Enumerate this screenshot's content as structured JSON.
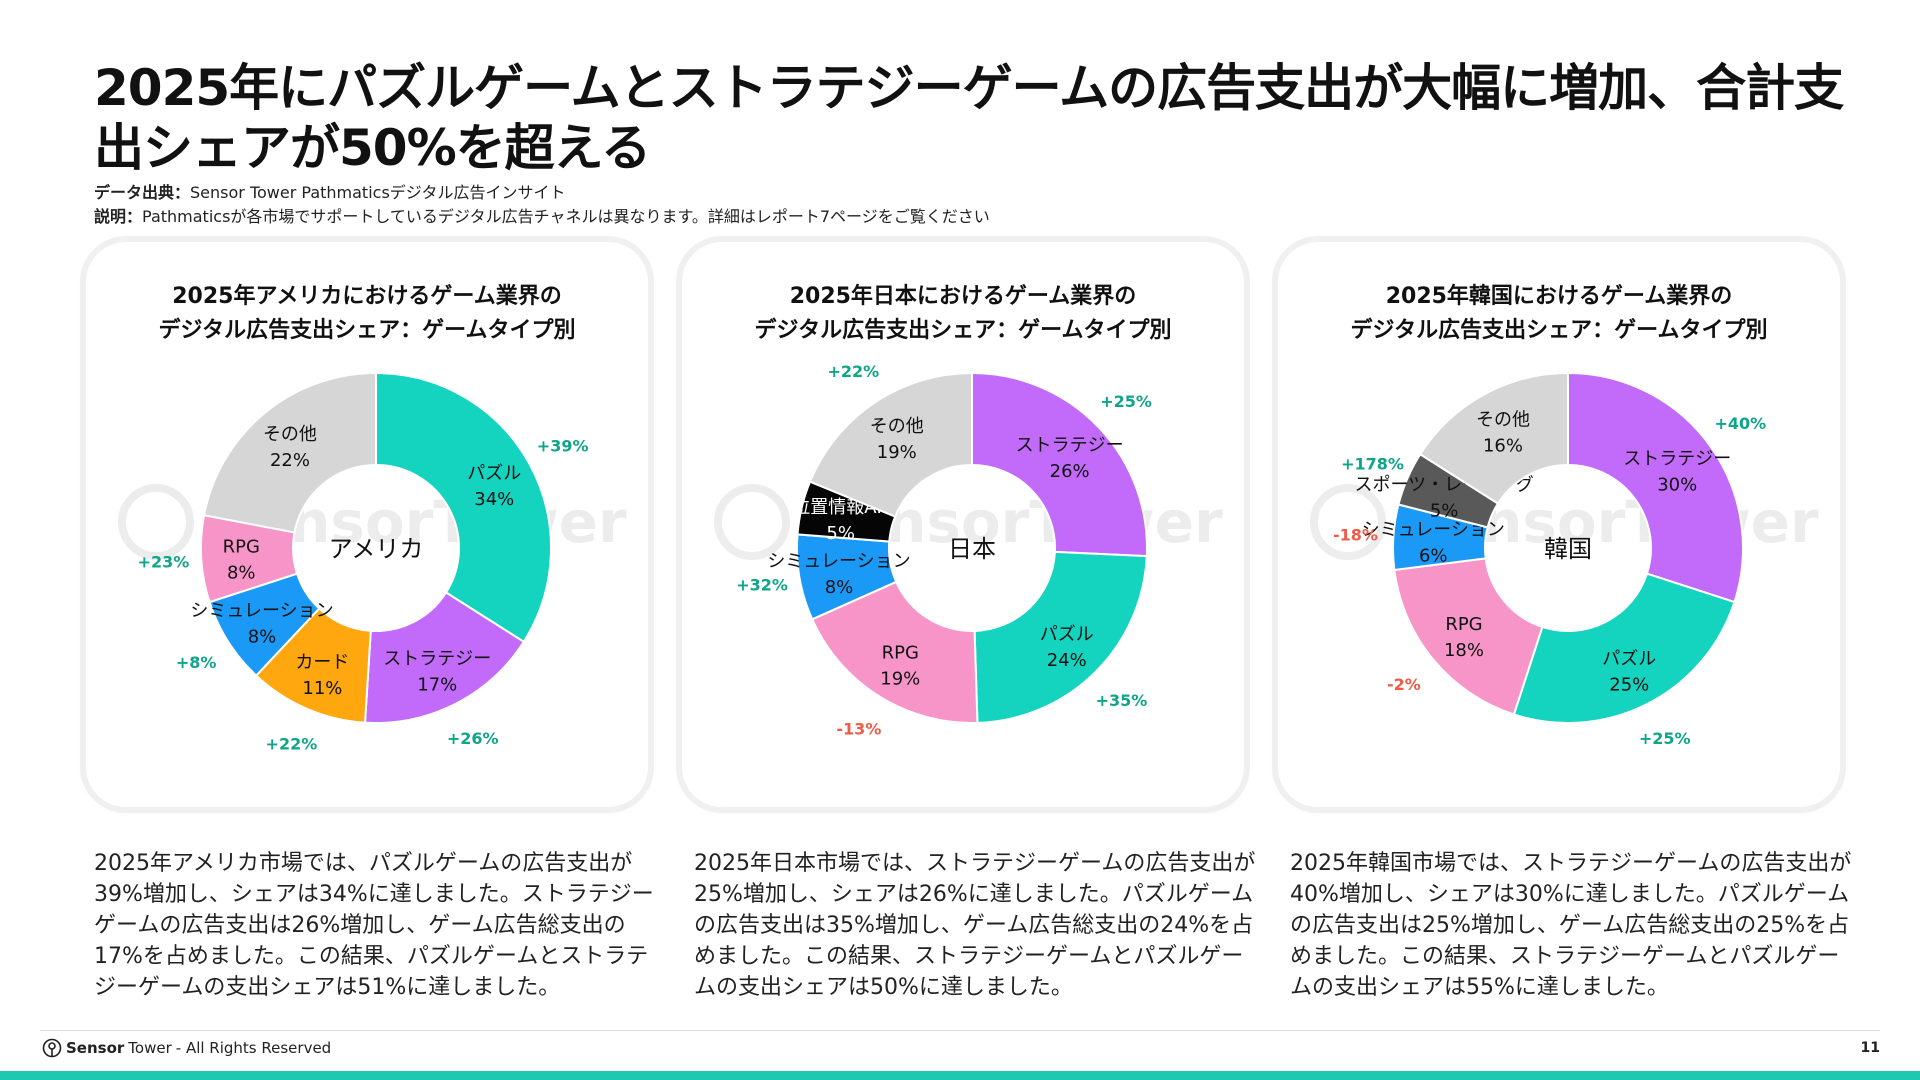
{
  "title": "2025年にパズルゲームとストラテジーゲームの広告支出が大幅に増加、合計支出シェアが50%を超える",
  "source": {
    "label1": "データ出典：",
    "text1": "Sensor Tower Pathmaticsデジタル広告インサイト",
    "label2": "説明：",
    "text2": "Pathmaticsが各市場でサポートしているデジタル広告チャネルは異なります。詳細はレポート7ページをご覧ください"
  },
  "watermark": "SensorTower",
  "chart_data": [
    {
      "type": "pie",
      "title": "2025年アメリカにおけるゲーム業界の\nデジタル広告支出シェア：ゲームタイプ別",
      "center_label": "アメリカ",
      "slices": [
        {
          "name": "パズル",
          "value": 34,
          "label": "34%",
          "change": "+39%",
          "color": "#14d3bf"
        },
        {
          "name": "ストラテジー",
          "value": 17,
          "label": "17%",
          "change": "+26%",
          "color": "#c26bfa"
        },
        {
          "name": "カード",
          "value": 11,
          "label": "11%",
          "change": "+22%",
          "color": "#ffa70e"
        },
        {
          "name": "シミュレーション",
          "value": 8,
          "label": "8%",
          "change": "+8%",
          "color": "#1b99f6"
        },
        {
          "name": "RPG",
          "value": 8,
          "label": "8%",
          "change": "+23%",
          "color": "#f795c9"
        },
        {
          "name": "その他",
          "value": 22,
          "label": "22%",
          "change": "",
          "color": "#d6d6d6"
        }
      ]
    },
    {
      "type": "pie",
      "title": "2025年日本におけるゲーム業界の\nデジタル広告支出シェア：ゲームタイプ別",
      "center_label": "日本",
      "slices": [
        {
          "name": "ストラテジー",
          "value": 26,
          "label": "26%",
          "change": "+25%",
          "color": "#c26bfa"
        },
        {
          "name": "パズル",
          "value": 24,
          "label": "24%",
          "change": "+35%",
          "color": "#14d3bf"
        },
        {
          "name": "RPG",
          "value": 19,
          "label": "19%",
          "change": "-13%",
          "color": "#f795c9"
        },
        {
          "name": "シミュレーション",
          "value": 8,
          "label": "8%",
          "change": "+32%",
          "color": "#1b99f6"
        },
        {
          "name": "位置情報AR",
          "value": 5,
          "label": "5%",
          "change": "",
          "color": "#050505"
        },
        {
          "name": "その他",
          "value": 19,
          "label": "19%",
          "change": "+22%",
          "color": "#d6d6d6"
        }
      ]
    },
    {
      "type": "pie",
      "title": "2025年韓国におけるゲーム業界の\nデジタル広告支出シェア：ゲームタイプ別",
      "center_label": "韓国",
      "slices": [
        {
          "name": "ストラテジー",
          "value": 30,
          "label": "30%",
          "change": "+40%",
          "color": "#c26bfa"
        },
        {
          "name": "パズル",
          "value": 25,
          "label": "25%",
          "change": "+25%",
          "color": "#14d3bf"
        },
        {
          "name": "RPG",
          "value": 18,
          "label": "18%",
          "change": "-2%",
          "color": "#f795c9"
        },
        {
          "name": "シミュレーション",
          "value": 6,
          "label": "6%",
          "change": "-18%",
          "color": "#1b99f6"
        },
        {
          "name": "スポーツ・レーシング",
          "value": 5,
          "label": "5%",
          "change": "+178%",
          "color": "#595959"
        },
        {
          "name": "その他",
          "value": 16,
          "label": "16%",
          "change": "",
          "color": "#d6d6d6"
        }
      ]
    }
  ],
  "descriptions": [
    "2025年アメリカ市場では、パズルゲームの広告支出が39%増加し、シェアは34%に達しました。ストラテジーゲームの広告支出は26%増加し、ゲーム広告総支出の17%を占めました。この結果、パズルゲームとストラテジーゲームの支出シェアは51%に達しました。",
    "2025年日本市場では、ストラテジーゲームの広告支出が25%増加し、シェアは26%に達しました。パズルゲームの広告支出は35%増加し、ゲーム広告総支出の24%を占めました。この結果、ストラテジーゲームとパズルゲームの支出シェアは50%に達しました。",
    "2025年韓国市場では、ストラテジーゲームの広告支出が40%増加し、シェアは30%に達しました。パズルゲームの広告支出は25%増加し、ゲーム広告総支出の25%を占めました。この結果、ストラテジーゲームとパズルゲームの支出シェアは55%に達しました。"
  ],
  "footer": {
    "brand_bold": "Sensor",
    "brand_rest": "Tower",
    "rights": "- All Rights Reserved",
    "page": "11"
  },
  "colors": {
    "positive": "#0fa588",
    "negative": "#ee5b47",
    "bottom_bar": "#1dc9b1"
  }
}
